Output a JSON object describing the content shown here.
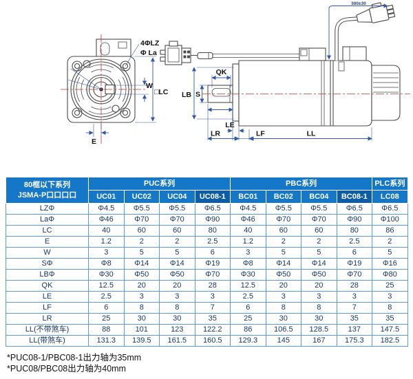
{
  "drawing": {
    "labels": {
      "bolt_holes": "4ΦLZ",
      "flange_circle": "Φ La",
      "keyway_width": "W",
      "frame_square": "□LC",
      "keyway_offset": "E",
      "key_length": "QK",
      "pilot_dia": "LB",
      "shaft_dia": "S",
      "pilot_depth": "LE",
      "shaft_length": "LR",
      "flange_thickness": "LF",
      "body_length": "LL",
      "cable_length": "300±30"
    }
  },
  "table": {
    "corner": {
      "line1": "80框以下系列",
      "line2": "JSMA-P口口口口"
    },
    "groups": [
      {
        "label": "PUC系列",
        "span": 4
      },
      {
        "label": "PBC系列",
        "span": 4
      },
      {
        "label": "PLC系列",
        "span": 1
      }
    ],
    "columns": [
      {
        "label": "UC01",
        "dark": false
      },
      {
        "label": "UC02",
        "dark": false
      },
      {
        "label": "UC04",
        "dark": false
      },
      {
        "label": "UC08-1",
        "dark": true
      },
      {
        "label": "BC01",
        "dark": false
      },
      {
        "label": "BC02",
        "dark": false
      },
      {
        "label": "BC04",
        "dark": false
      },
      {
        "label": "BC08-1",
        "dark": true
      },
      {
        "label": "LC08",
        "dark": false
      }
    ],
    "rows": [
      {
        "label": "LZΦ",
        "values": [
          "Φ4.5",
          "Φ5.5",
          "Φ5.5",
          "Φ6.5",
          "Φ4.5",
          "Φ5.5",
          "Φ5.5",
          "Φ6.5",
          "Φ6.5"
        ]
      },
      {
        "label": "LaΦ",
        "values": [
          "Φ46",
          "Φ70",
          "Φ70",
          "Φ90",
          "Φ46",
          "Φ70",
          "Φ70",
          "Φ90",
          "Φ100"
        ]
      },
      {
        "label": "LC",
        "values": [
          "40",
          "60",
          "60",
          "80",
          "40",
          "60",
          "60",
          "80",
          "86"
        ]
      },
      {
        "label": "E",
        "values": [
          "1.2",
          "2",
          "2",
          "2.5",
          "1.2",
          "2",
          "2",
          "2.5",
          "2"
        ]
      },
      {
        "label": "W",
        "values": [
          "3",
          "5",
          "5",
          "6",
          "3",
          "5",
          "5",
          "6",
          "5"
        ]
      },
      {
        "label": "SΦ",
        "values": [
          "Φ8",
          "Φ14",
          "Φ14",
          "Φ19",
          "Φ8",
          "Φ14",
          "Φ14",
          "Φ19",
          "Φ16"
        ]
      },
      {
        "label": "LBΦ",
        "values": [
          "Φ30",
          "Φ50",
          "Φ50",
          "Φ70",
          "Φ30",
          "Φ50",
          "Φ50",
          "Φ70",
          "Φ80"
        ]
      },
      {
        "label": "QK",
        "values": [
          "12.5",
          "20",
          "20",
          "28",
          "12.5",
          "20",
          "20",
          "28",
          "25"
        ]
      },
      {
        "label": "LE",
        "values": [
          "2.5",
          "3",
          "3",
          "3",
          "2.5",
          "3",
          "3",
          "3",
          "3"
        ]
      },
      {
        "label": "LF",
        "values": [
          "6",
          "8",
          "8",
          "7",
          "6",
          "8",
          "8",
          "7",
          "8"
        ]
      },
      {
        "label": "LR",
        "values": [
          "25",
          "30",
          "30",
          "35",
          "25",
          "30",
          "30",
          "35",
          "35"
        ]
      },
      {
        "label": "LL(不带煞车)",
        "values": [
          "88",
          "101",
          "123",
          "122.2",
          "86",
          "106.5",
          "128.5",
          "137",
          "147.5"
        ]
      },
      {
        "label": "LL(带煞车)",
        "values": [
          "131.3",
          "139.5",
          "161.5",
          "160.5",
          "129.3",
          "145",
          "167",
          "175.3",
          "182.5"
        ]
      }
    ]
  },
  "footnotes": [
    "*PUC08-1/PBC08-1出力轴为35mm",
    "*PUC08/PBC08出力轴为40mm"
  ],
  "colors": {
    "header_blue": "#1477C8",
    "header_dark_blue": "#0C5CA8",
    "table_border": "#5B9BD5",
    "cell_text": "#17365D",
    "dimension_blue": "#3358A8",
    "centerline_red": "#C0392B"
  }
}
